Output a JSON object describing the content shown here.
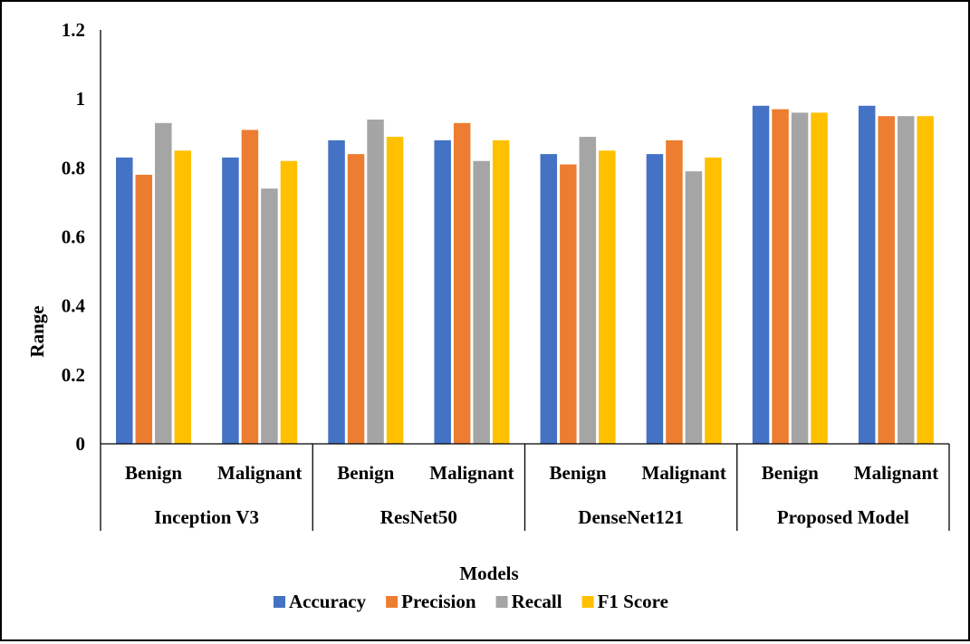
{
  "chart_data": {
    "type": "bar",
    "title": "",
    "xlabel": "Models",
    "ylabel": "Range",
    "ylim": [
      0,
      1.2
    ],
    "yticks": [
      "0",
      "0.2",
      "0.4",
      "0.6",
      "0.8",
      "1",
      "1.2"
    ],
    "grid": false,
    "legend_position": "bottom",
    "groups": [
      {
        "name": "Inception V3",
        "categories": [
          "Benign",
          "Malignant"
        ]
      },
      {
        "name": "ResNet50",
        "categories": [
          "Benign",
          "Malignant"
        ]
      },
      {
        "name": "DenseNet121",
        "categories": [
          "Benign",
          "Malignant"
        ]
      },
      {
        "name": "Proposed Model",
        "categories": [
          "Benign",
          "Malignant"
        ]
      }
    ],
    "series": [
      {
        "name": "Accuracy",
        "color": "#4472C4",
        "values": [
          0.83,
          0.83,
          0.88,
          0.88,
          0.84,
          0.84,
          0.98,
          0.98
        ]
      },
      {
        "name": "Precision",
        "color": "#ED7D31",
        "values": [
          0.78,
          0.91,
          0.84,
          0.93,
          0.81,
          0.88,
          0.97,
          0.95
        ]
      },
      {
        "name": "Recall",
        "color": "#A5A5A5",
        "values": [
          0.93,
          0.74,
          0.94,
          0.82,
          0.89,
          0.79,
          0.96,
          0.95
        ]
      },
      {
        "name": "F1 Score",
        "color": "#FFC000",
        "values": [
          0.85,
          0.82,
          0.89,
          0.88,
          0.85,
          0.83,
          0.96,
          0.95
        ]
      }
    ]
  }
}
